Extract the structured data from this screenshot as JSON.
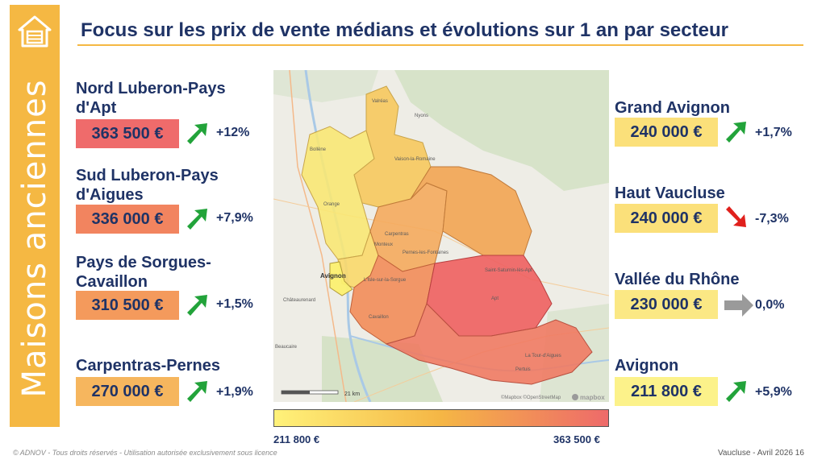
{
  "title": "Focus sur les prix de vente médians et évolutions sur 1 an par secteur",
  "sidebar_title": "Maisons anciennes",
  "sidebar_icon": "house-icon",
  "left_sectors": [
    {
      "name": "Nord Luberon-Pays d'Apt",
      "price": "363 500 €",
      "change": "+12%",
      "trend": "up",
      "color": "#ef6b6b"
    },
    {
      "name": "Sud Luberon-Pays d'Aigues",
      "price": "336 000 €",
      "change": "+7,9%",
      "trend": "up",
      "color": "#f2845f"
    },
    {
      "name": "Pays de Sorgues-Cavaillon",
      "price": "310 500 €",
      "change": "+1,5%",
      "trend": "up",
      "color": "#f49a5c"
    },
    {
      "name": "Carpentras-Pernes",
      "price": "270 000 €",
      "change": "+1,9%",
      "trend": "up",
      "color": "#f6b65e"
    }
  ],
  "right_sectors": [
    {
      "name": "Grand Avignon",
      "price": "240 000 €",
      "change": "+1,7%",
      "trend": "up",
      "color": "#fbe07a"
    },
    {
      "name": "Haut Vaucluse",
      "price": "240 000 €",
      "change": "-7,3%",
      "trend": "down",
      "color": "#fbe07a"
    },
    {
      "name": "Vallée du Rhône",
      "price": "230 000 €",
      "change": "0,0%",
      "trend": "flat",
      "color": "#fbe884"
    },
    {
      "name": "Avignon",
      "price": "211 800 €",
      "change": "+5,9%",
      "trend": "up",
      "color": "#fcf28a"
    }
  ],
  "map": {
    "labels": [
      "Valréas",
      "Nyons",
      "Vaison-la-Romaine",
      "Bollène",
      "Orange",
      "Carpentras",
      "Monteux",
      "Pernes-les-Fontaines",
      "Avignon",
      "L'Isle-sur-la-Sorgue",
      "Cavaillon",
      "Saint-Saturnin-lès-Apt",
      "Apt",
      "Pertuis",
      "La Tour-d'Aigues",
      "Châteaurenard",
      "Beaucaire"
    ],
    "scale": "21 km",
    "attribution": "©Mapbox ©OpenStreetMap",
    "logo": "mapbox"
  },
  "legend": {
    "min": "211 800 €",
    "max": "363 500 €"
  },
  "footer": {
    "copyright": "© ADNOV - Tous droits réservés - Utilisation autorisée exclusivement sous licence",
    "page": "Vaucluse - Avril 2026   16"
  },
  "colors": {
    "navy": "#1f3366",
    "accent": "#f5b843",
    "up": "#22a33a",
    "down": "#e0201c",
    "flat": "#9a9a9a"
  }
}
